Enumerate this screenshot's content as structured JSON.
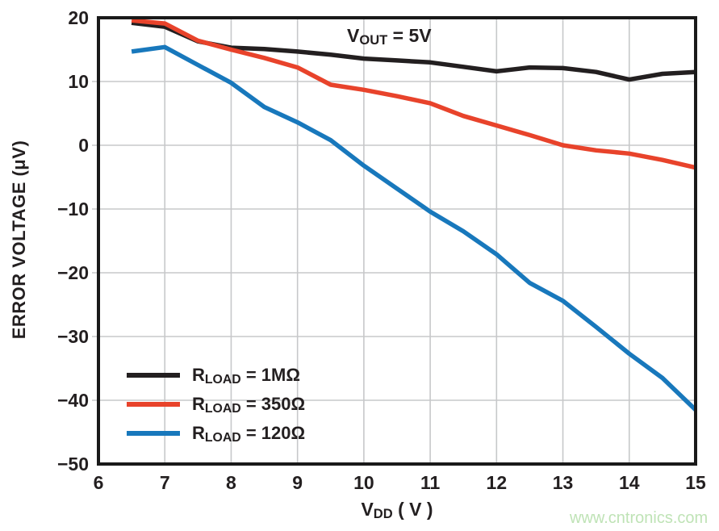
{
  "watermark_text": "www.cntronics.com",
  "watermark_color": "#bfe3b6",
  "chart_data": {
    "type": "line",
    "annotation": {
      "prefix": "V",
      "sub": "OUT",
      "suffix": " = 5V"
    },
    "xlabel": {
      "prefix": "V",
      "sub": "DD",
      "suffix": " ( V )"
    },
    "ylabel": "ERROR VOLTAGE (μV)",
    "xlim": [
      6,
      15
    ],
    "ylim": [
      -50,
      20
    ],
    "grid": true,
    "grid_color": "#c7c8ca",
    "axis_color": "#1a1a1a",
    "legend_position": "inside bottom-left",
    "x_ticks": [
      {
        "value": 6,
        "label": "6"
      },
      {
        "value": 7,
        "label": "7"
      },
      {
        "value": 8,
        "label": "8"
      },
      {
        "value": 9,
        "label": "9"
      },
      {
        "value": 10,
        "label": "10"
      },
      {
        "value": 11,
        "label": "11"
      },
      {
        "value": 12,
        "label": "12"
      },
      {
        "value": 13,
        "label": "13"
      },
      {
        "value": 14,
        "label": "14"
      },
      {
        "value": 15,
        "label": "15"
      }
    ],
    "y_ticks": [
      {
        "value": 20,
        "label": "20"
      },
      {
        "value": 10,
        "label": "10"
      },
      {
        "value": 0,
        "label": "0"
      },
      {
        "value": -10,
        "label": "−10"
      },
      {
        "value": -20,
        "label": "−20"
      },
      {
        "value": -30,
        "label": "−30"
      },
      {
        "value": -40,
        "label": "−40"
      },
      {
        "value": -50,
        "label": "−50"
      }
    ],
    "x": [
      6.5,
      7,
      7.5,
      8,
      8.5,
      9,
      9.5,
      10,
      10.5,
      11,
      11.5,
      12,
      12.5,
      13,
      13.5,
      14,
      14.5,
      15
    ],
    "series": [
      {
        "id": "rload-1m",
        "label": {
          "prefix": "R",
          "sub": "LOAD",
          "suffix": " = 1MΩ"
        },
        "color": "#231f20",
        "values": [
          19.2,
          18.6,
          16.3,
          15.3,
          15.1,
          14.7,
          14.2,
          13.6,
          13.3,
          13.0,
          12.3,
          11.6,
          12.2,
          12.1,
          11.5,
          10.3,
          11.2,
          11.5
        ]
      },
      {
        "id": "rload-350",
        "label": {
          "prefix": "R",
          "sub": "LOAD",
          "suffix": " = 350Ω"
        },
        "color": "#e8432b",
        "values": [
          19.6,
          19.1,
          16.4,
          15.0,
          13.7,
          12.2,
          9.5,
          8.7,
          7.7,
          6.6,
          4.6,
          3.1,
          1.6,
          0.0,
          -0.8,
          -1.3,
          -2.3,
          -3.5
        ]
      },
      {
        "id": "rload-120",
        "label": {
          "prefix": "R",
          "sub": "LOAD",
          "suffix": " = 120Ω"
        },
        "color": "#1878bc",
        "values": [
          14.7,
          15.4,
          12.6,
          9.8,
          6.0,
          3.6,
          0.8,
          -3.2,
          -6.8,
          -10.4,
          -13.5,
          -17.1,
          -21.6,
          -24.4,
          -28.5,
          -32.7,
          -36.5,
          -41.5
        ]
      }
    ]
  }
}
